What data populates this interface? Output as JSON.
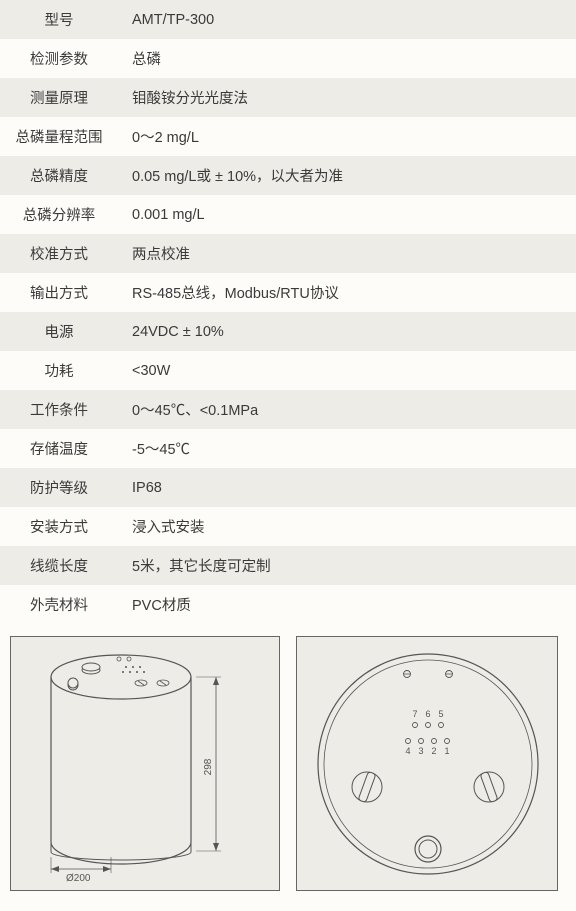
{
  "specs": [
    {
      "label": "型号",
      "value": "AMT/TP-300"
    },
    {
      "label": "检测参数",
      "value": "总磷"
    },
    {
      "label": "测量原理",
      "value": "钼酸铵分光光度法"
    },
    {
      "label": "总磷量程范围",
      "value": "0～2 mg/L"
    },
    {
      "label": "总磷精度",
      "value": "0.05 mg/L或 ± 10%，以大者为准"
    },
    {
      "label": "总磷分辨率",
      "value": "0.001 mg/L"
    },
    {
      "label": "校准方式",
      "value": "两点校准"
    },
    {
      "label": "输出方式",
      "value": "RS-485总线，Modbus/RTU协议"
    },
    {
      "label": "电源",
      "value": "24VDC ± 10%"
    },
    {
      "label": "功耗",
      "value": "<30W"
    },
    {
      "label": "工作条件",
      "value": "0～45℃、<0.1MPa"
    },
    {
      "label": "存储温度",
      "value": "-5～45℃"
    },
    {
      "label": "防护等级",
      "value": "IP68"
    },
    {
      "label": "安装方式",
      "value": "浸入式安装"
    },
    {
      "label": "线缆长度",
      "value": "5米，其它长度可定制"
    },
    {
      "label": "外壳材料",
      "value": "PVC材质"
    }
  ],
  "diagram": {
    "colors": {
      "panel_bg": "#edece7",
      "stroke": "#555",
      "dim_text": "#555"
    },
    "left": {
      "diameter_label": "Ø200",
      "height_label": "298"
    },
    "right": {
      "pin_labels_top": [
        "7",
        "6",
        "5"
      ],
      "pin_labels_bottom": [
        "4",
        "3",
        "2",
        "1"
      ]
    }
  }
}
